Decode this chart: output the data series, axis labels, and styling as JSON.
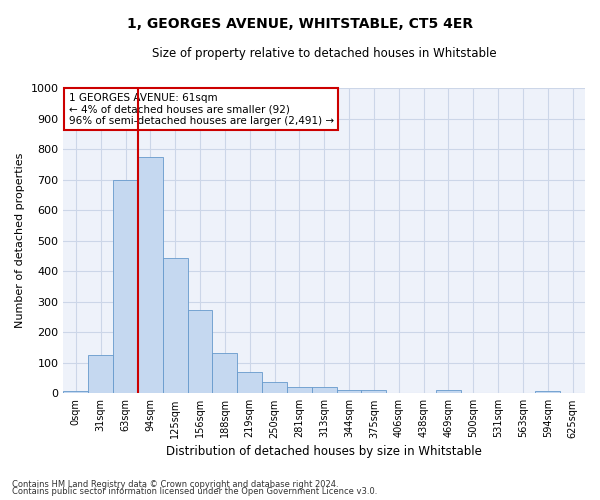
{
  "title": "1, GEORGES AVENUE, WHITSTABLE, CT5 4ER",
  "subtitle": "Size of property relative to detached houses in Whitstable",
  "xlabel": "Distribution of detached houses by size in Whitstable",
  "ylabel": "Number of detached properties",
  "bar_labels": [
    "0sqm",
    "31sqm",
    "63sqm",
    "94sqm",
    "125sqm",
    "156sqm",
    "188sqm",
    "219sqm",
    "250sqm",
    "281sqm",
    "313sqm",
    "344sqm",
    "375sqm",
    "406sqm",
    "438sqm",
    "469sqm",
    "500sqm",
    "531sqm",
    "563sqm",
    "594sqm",
    "625sqm"
  ],
  "bar_values": [
    8,
    125,
    700,
    775,
    443,
    273,
    132,
    70,
    37,
    20,
    20,
    10,
    10,
    0,
    0,
    10,
    0,
    0,
    0,
    8,
    0
  ],
  "bar_color": "#c5d8f0",
  "bar_edge_color": "#6699cc",
  "grid_color": "#ccd6e8",
  "bg_color": "#eef2fa",
  "vline_x": 2.5,
  "vline_color": "#cc0000",
  "annotation_text": "1 GEORGES AVENUE: 61sqm\n← 4% of detached houses are smaller (92)\n96% of semi-detached houses are larger (2,491) →",
  "annotation_box_color": "#cc0000",
  "ylim": [
    0,
    1000
  ],
  "yticks": [
    0,
    100,
    200,
    300,
    400,
    500,
    600,
    700,
    800,
    900,
    1000
  ],
  "footer_line1": "Contains HM Land Registry data © Crown copyright and database right 2024.",
  "footer_line2": "Contains public sector information licensed under the Open Government Licence v3.0."
}
